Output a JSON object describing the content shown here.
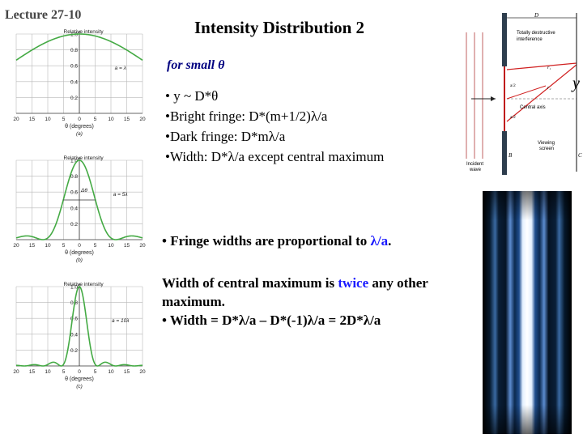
{
  "lecture": "Lecture 27-10",
  "title": "Intensity Distribution 2",
  "small_theta": "for small θ",
  "bullets": [
    "• y ~ D*θ",
    "•Bright fringe: D*(m+1/2)λ/a",
    "•Dark fringe: D*mλ/a",
    "•Width: D*λ/a except central maximum"
  ],
  "fringe_line": {
    "pre": "• Fringe widths are proportional to ",
    "hl": "λ/a",
    "post": "."
  },
  "central": {
    "pre": "Width of central maximum is ",
    "hl": "twice",
    "post": " any other maximum.",
    "bullet": "• Width = D*λ/a – D*(-1)λ/a  = 2D*λ/a"
  },
  "graph_texts": {
    "ylabel": "Relative intensity",
    "xlabel": "θ (degrees)",
    "yticks": [
      "1.0",
      "0.8",
      "0.6",
      "0.4",
      "0.2"
    ],
    "xticks": [
      "20",
      "15",
      "10",
      "5",
      "0",
      "5",
      "10",
      "15",
      "20"
    ],
    "delta": "Δθ"
  },
  "chart_data": [
    {
      "type": "line",
      "panel": "(a)",
      "condition": "a = λ",
      "ratio": 1,
      "ylim": [
        0,
        1.0
      ],
      "xlim": [
        -20,
        20
      ],
      "xlabel": "θ (degrees)",
      "ylabel": "Relative intensity"
    },
    {
      "type": "line",
      "panel": "(b)",
      "condition": "a = 5λ",
      "ratio": 5,
      "ylim": [
        0,
        1.0
      ],
      "xlim": [
        -20,
        20
      ],
      "xlabel": "θ (degrees)",
      "ylabel": "Relative intensity"
    },
    {
      "type": "line",
      "panel": "(c)",
      "condition": "a = 10λ",
      "ratio": 10,
      "ylim": [
        0,
        1.0
      ],
      "xlim": [
        -20,
        20
      ],
      "xlabel": "θ (degrees)",
      "ylabel": "Relative intensity"
    }
  ],
  "diagram": {
    "D": "D",
    "destructive": [
      "Totally destructive",
      "interference"
    ],
    "central_axis": "Central axis",
    "viewing": [
      "Viewing",
      "screen"
    ],
    "incident": [
      "Incident",
      "wave"
    ],
    "half_a": "a/2",
    "r1": "r₁",
    "r2": "r₂",
    "B": "B",
    "C": "C",
    "y": "y"
  },
  "colors": {
    "curve": "#44aa44",
    "grid": "#b8b8b8",
    "highlight": "#1a1aff",
    "slit": "#b01818",
    "ray": "#d02020"
  }
}
